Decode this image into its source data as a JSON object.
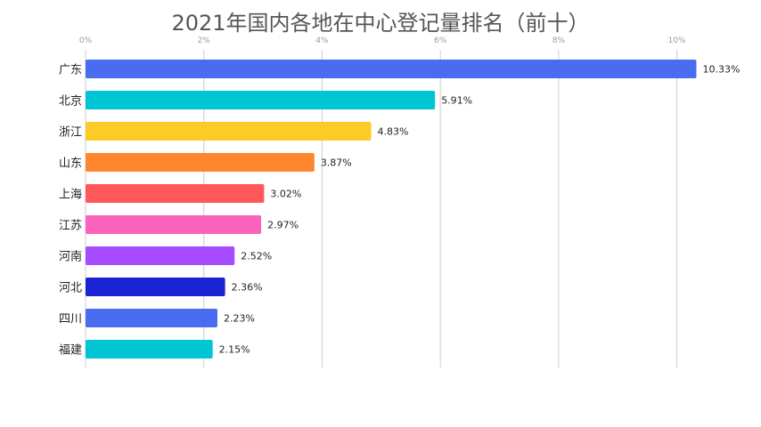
{
  "chart_data": {
    "type": "bar",
    "orientation": "horizontal",
    "title": "2021年国内各地在中心登记量排名（前十）",
    "categories": [
      "广东",
      "北京",
      "浙江",
      "山东",
      "上海",
      "江苏",
      "河南",
      "河北",
      "四川",
      "福建"
    ],
    "values": [
      10.33,
      5.91,
      4.83,
      3.87,
      3.02,
      2.97,
      2.52,
      2.36,
      2.23,
      2.15
    ],
    "value_labels": [
      "10.33%",
      "5.91%",
      "4.83%",
      "3.87%",
      "3.02%",
      "2.97%",
      "2.52%",
      "2.36%",
      "2.23%",
      "2.15%"
    ],
    "colors": [
      "#4a6cf0",
      "#00c5d3",
      "#fccb27",
      "#fe862f",
      "#ff575a",
      "#fb63bc",
      "#a64bfd",
      "#1a23d1",
      "#4a6cf0",
      "#00c5d3"
    ],
    "xlim": [
      0,
      10.33
    ],
    "xticks": [
      0,
      2,
      4,
      6,
      8,
      10
    ],
    "xtick_labels": [
      "0%",
      "2%",
      "4%",
      "6%",
      "8%",
      "10%"
    ],
    "grid": true,
    "axis_position": "top"
  }
}
